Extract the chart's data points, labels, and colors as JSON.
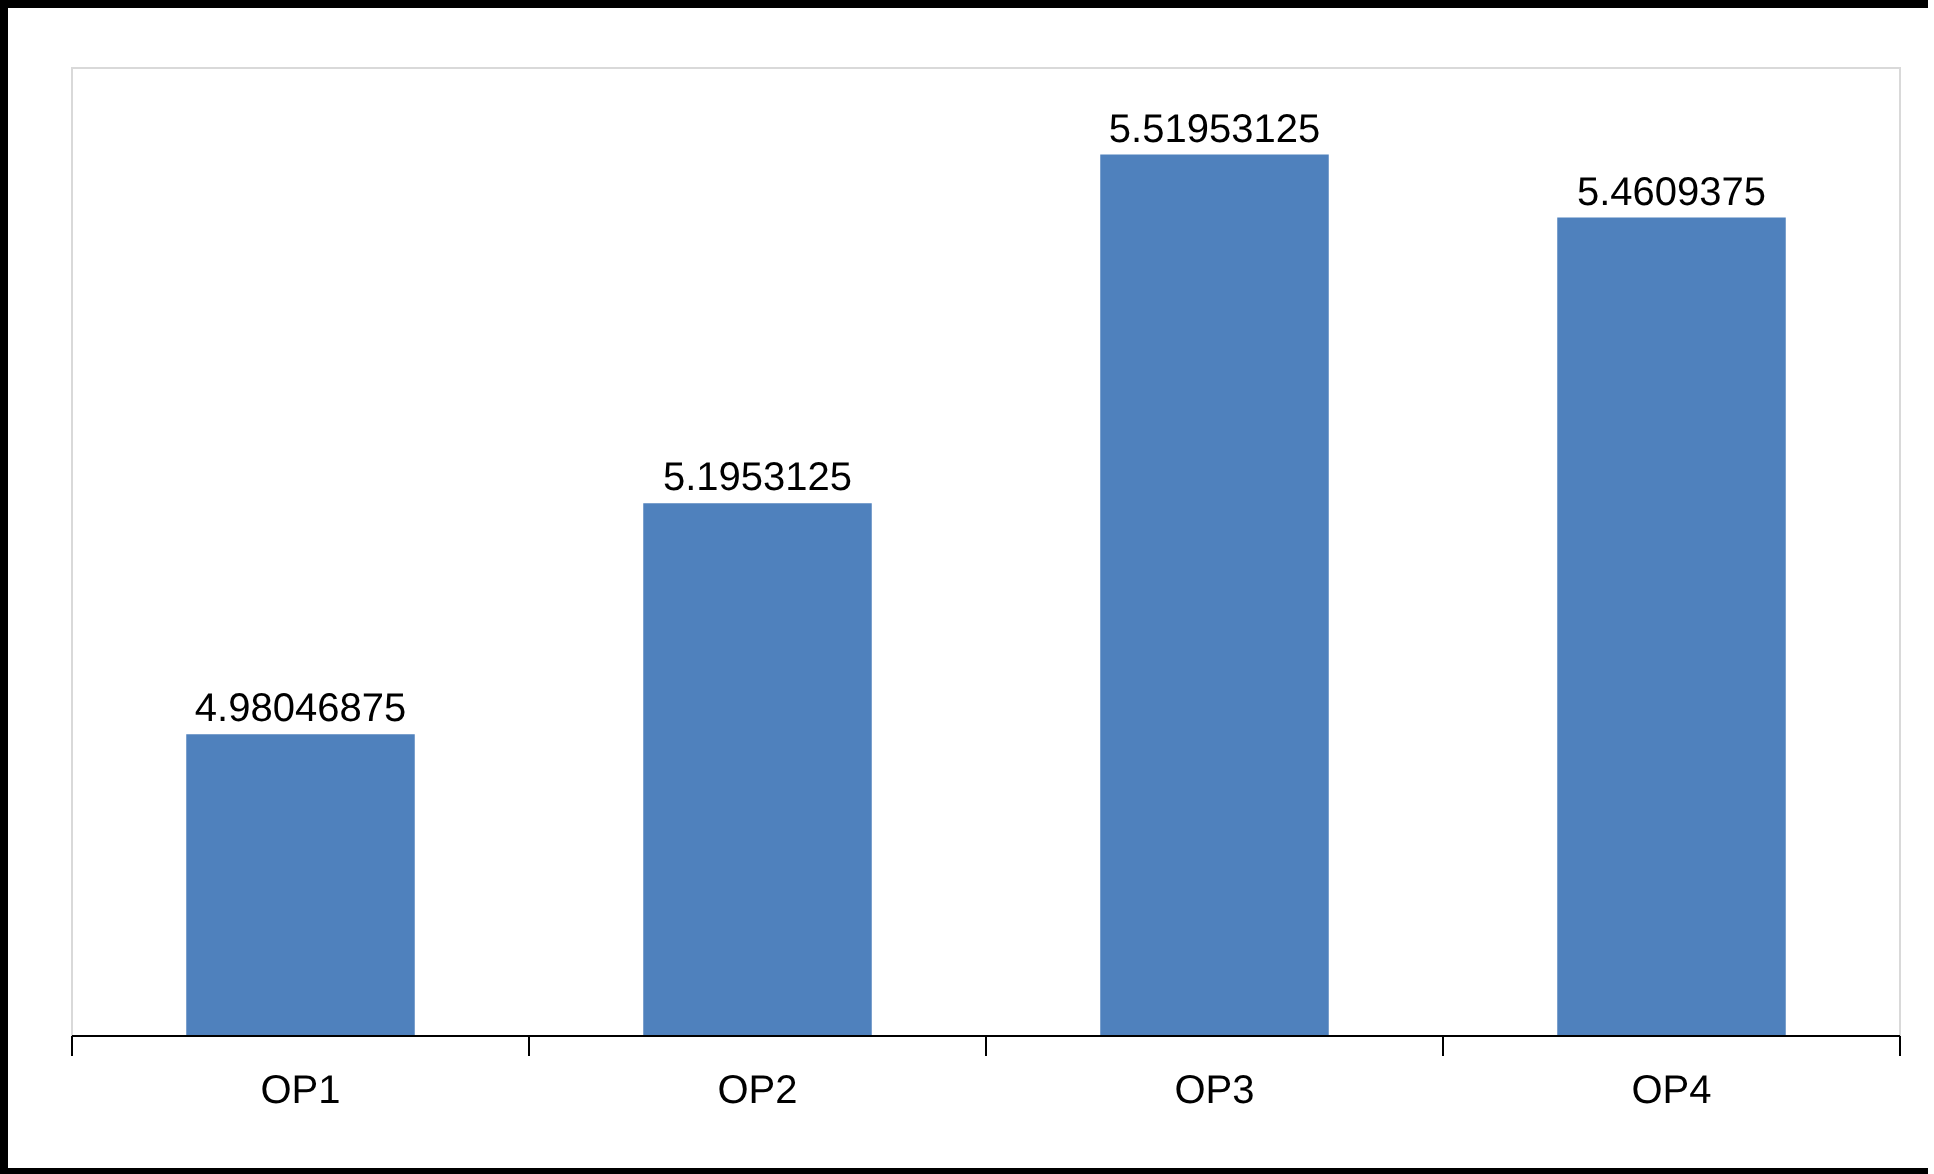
{
  "chart_data": {
    "type": "bar",
    "categories": [
      "OP1",
      "OP2",
      "OP3",
      "OP4"
    ],
    "values": [
      4.98046875,
      5.1953125,
      5.51953125,
      5.4609375
    ],
    "color": "#4f81bd",
    "ylim": [
      4.7,
      5.6
    ],
    "data_labels": true,
    "tick_labels": "x",
    "grid": false,
    "legend": false
  }
}
